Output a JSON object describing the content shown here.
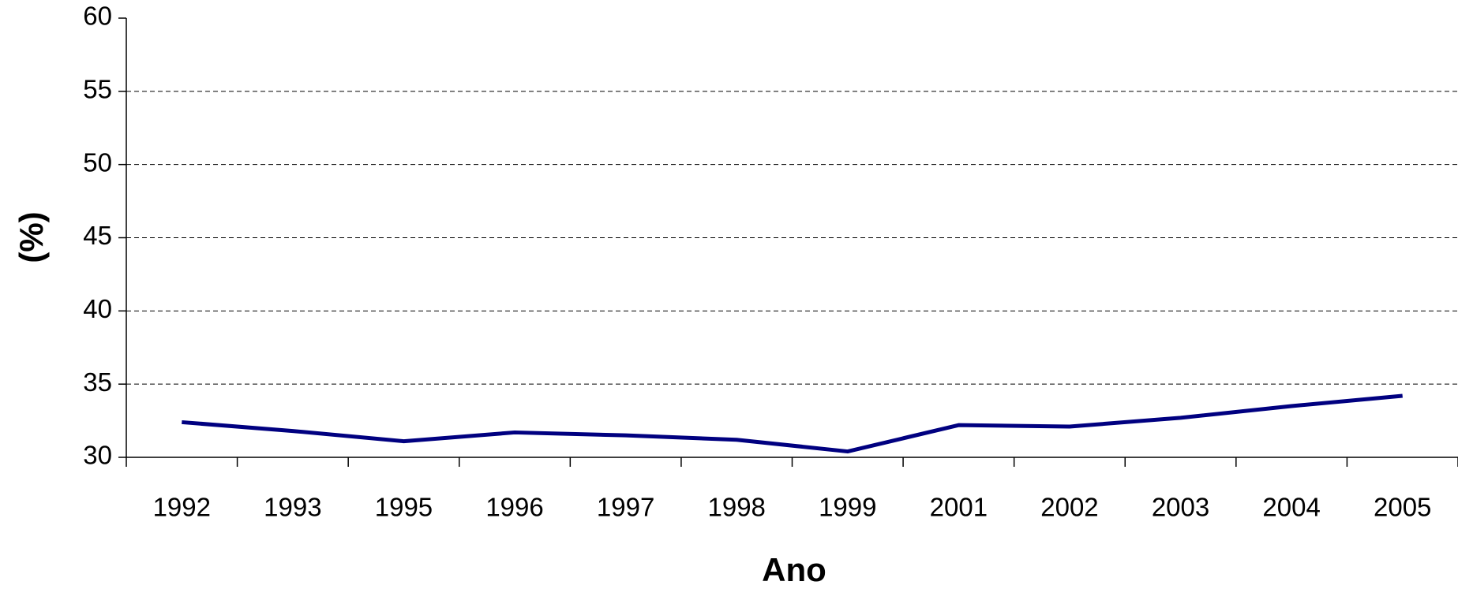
{
  "chart_data": {
    "type": "line",
    "x_label": "Ano",
    "y_label": "(%)",
    "categories": [
      "1992",
      "1993",
      "1995",
      "1996",
      "1997",
      "1998",
      "1999",
      "2001",
      "2002",
      "2003",
      "2004",
      "2005"
    ],
    "series": [
      {
        "color": "#000080",
        "values": [
          32.4,
          31.8,
          31.1,
          31.7,
          31.5,
          31.2,
          30.4,
          32.2,
          32.1,
          32.7,
          33.5,
          34.2
        ]
      }
    ],
    "ylim": [
      30,
      60
    ],
    "yticks": [
      30,
      35,
      40,
      45,
      50,
      55,
      60
    ],
    "grid": true
  }
}
